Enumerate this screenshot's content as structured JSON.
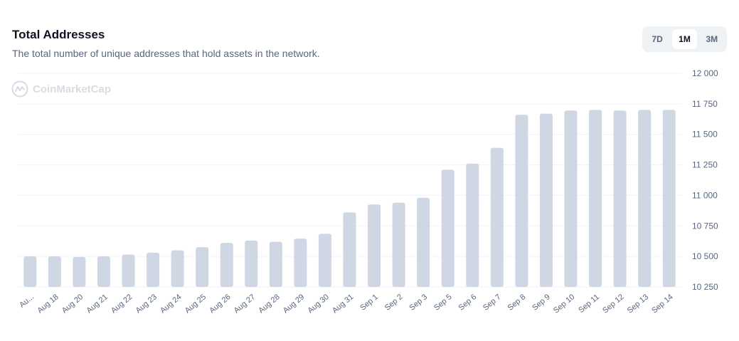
{
  "header": {
    "title": "Total Addresses",
    "subtitle": "The total number of unique addresses that hold assets in the network."
  },
  "range_toggle": {
    "options": [
      "7D",
      "1M",
      "3M"
    ],
    "selected": "1M"
  },
  "watermark": {
    "text": "CoinMarketCap",
    "icon": "coinmarketcap-logo-icon"
  },
  "colors": {
    "bar": "#cfd6e4",
    "grid": "#eff2f5",
    "axis_text": "#58667e"
  },
  "chart_data": {
    "type": "bar",
    "title": "Total Addresses",
    "categories": [
      "Au...",
      "Aug 18",
      "Aug 20",
      "Aug 21",
      "Aug 22",
      "Aug 23",
      "Aug 24",
      "Aug 25",
      "Aug 26",
      "Aug 27",
      "Aug 28",
      "Aug 29",
      "Aug 30",
      "Aug 31",
      "Sep 1",
      "Sep 2",
      "Sep 3",
      "Sep 5",
      "Sep 6",
      "Sep 7",
      "Sep 8",
      "Sep 9",
      "Sep 10",
      "Sep 11",
      "Sep 12",
      "Sep 13",
      "Sep 14"
    ],
    "values": [
      10500,
      10500,
      10495,
      10500,
      10515,
      10530,
      10550,
      10575,
      10610,
      10630,
      10620,
      10645,
      10685,
      10860,
      10925,
      10940,
      10980,
      11210,
      11260,
      11390,
      11660,
      11670,
      11695,
      11700,
      11695,
      11700,
      11700
    ],
    "yticks": [
      "12 000",
      "11 750",
      "11 500",
      "11 250",
      "11 000",
      "10 750",
      "10 500",
      "10 250"
    ],
    "ylim": [
      10250,
      12000
    ],
    "grid": true,
    "axis_position": "right"
  }
}
